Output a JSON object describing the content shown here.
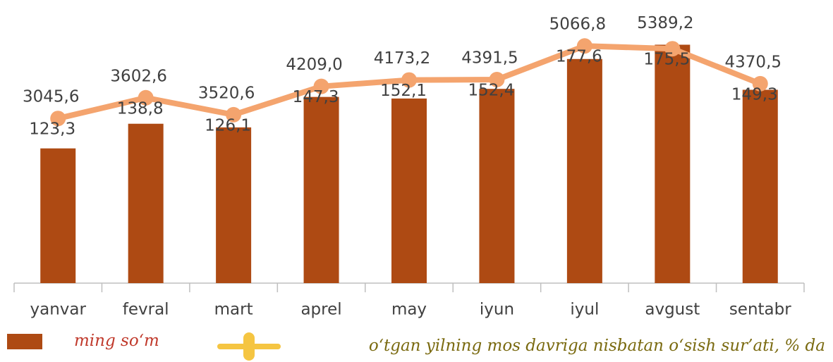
{
  "chart_data": {
    "type": "bar_line",
    "categories": [
      "yanvar",
      "fevral",
      "mart",
      "aprel",
      "may",
      "iyun",
      "iyul",
      "avgust",
      "sentabr"
    ],
    "series": [
      {
        "name": "ming so‘m",
        "color": "#ae4a13",
        "legend_text_color": "#c0392b",
        "values": [
          3045.6,
          3602.6,
          3520.6,
          4209.0,
          4173.2,
          4391.5,
          5066.8,
          5389.2,
          4370.5
        ],
        "value_labels": [
          "3045,6",
          "3602,6",
          "3520,6",
          "4209,0",
          "4173,2",
          "4391,5",
          "5066,8",
          "5389,2",
          "4370,5"
        ]
      },
      {
        "name": "o‘tgan yilning mos davriga nisbatan o‘sish sur’ati, % da",
        "color": "#f4a46e",
        "legend_color": "#f5c542",
        "legend_text_color": "#7a6a10",
        "axis": "y2",
        "values": [
          123.3,
          138.8,
          126.1,
          147.3,
          152.1,
          152.4,
          177.6,
          175.5,
          149.3
        ],
        "value_labels": [
          "123,3",
          "138,8",
          "126,1",
          "147,3",
          "152,1",
          "152,4",
          "177,6",
          "175,5",
          "149,3"
        ]
      }
    ],
    "ylim": [
      0,
      6400
    ],
    "y2lim": [
      0,
      212
    ]
  }
}
